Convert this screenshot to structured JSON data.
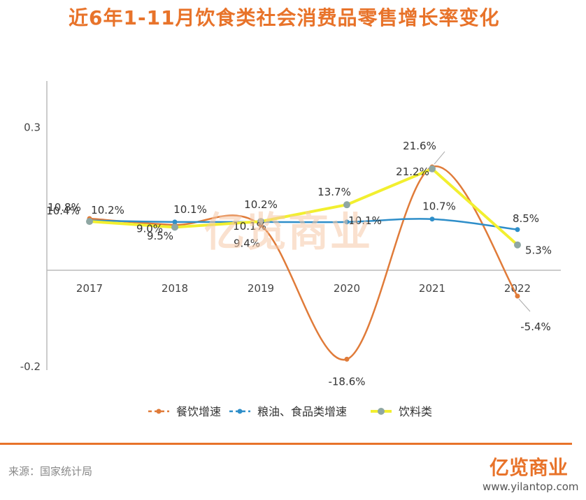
{
  "header": {
    "title": "近6年1-11月饮食类社会消费品零售增长率变化"
  },
  "chart_data": {
    "type": "line",
    "categories": [
      "2017",
      "2018",
      "2019",
      "2020",
      "2021",
      "2022"
    ],
    "ylim": [
      -0.2,
      0.3
    ],
    "yticks": [
      {
        "value": 0.3,
        "label": "0.3"
      },
      {
        "value": -0.2,
        "label": "-0.2"
      }
    ],
    "series": [
      {
        "name": "餐饮增速",
        "color": "#e07b39",
        "dash": "dashed",
        "values": [
          0.108,
          0.095,
          0.094,
          -0.186,
          0.216,
          -0.054
        ],
        "labels": [
          "10.8%",
          "9.5%",
          "9.4%",
          "-18.6%",
          "21.6%",
          "-5.4%"
        ]
      },
      {
        "name": "粮油、食品类增速",
        "color": "#2e8ec9",
        "dash": "dashed",
        "values": [
          0.104,
          0.101,
          0.101,
          0.101,
          0.107,
          0.085
        ],
        "labels": [
          "10.4%",
          "10.1%",
          "10.1%",
          "10.1%",
          "10.7%",
          "8.5%"
        ]
      },
      {
        "name": "饮料类",
        "color": "#f2ef2f",
        "dash": "solid",
        "values": [
          0.102,
          0.09,
          0.102,
          0.137,
          0.212,
          0.053
        ],
        "labels": [
          "10.2%",
          "9.0%",
          "10.2%",
          "13.7%",
          "21.2%",
          "5.3%"
        ]
      }
    ],
    "legend_position": "bottom"
  },
  "watermark": {
    "text": "亿览商业"
  },
  "footer": {
    "source": "来源：国家统计局",
    "logo": "亿览商业",
    "url": "www.yilantop.com"
  }
}
